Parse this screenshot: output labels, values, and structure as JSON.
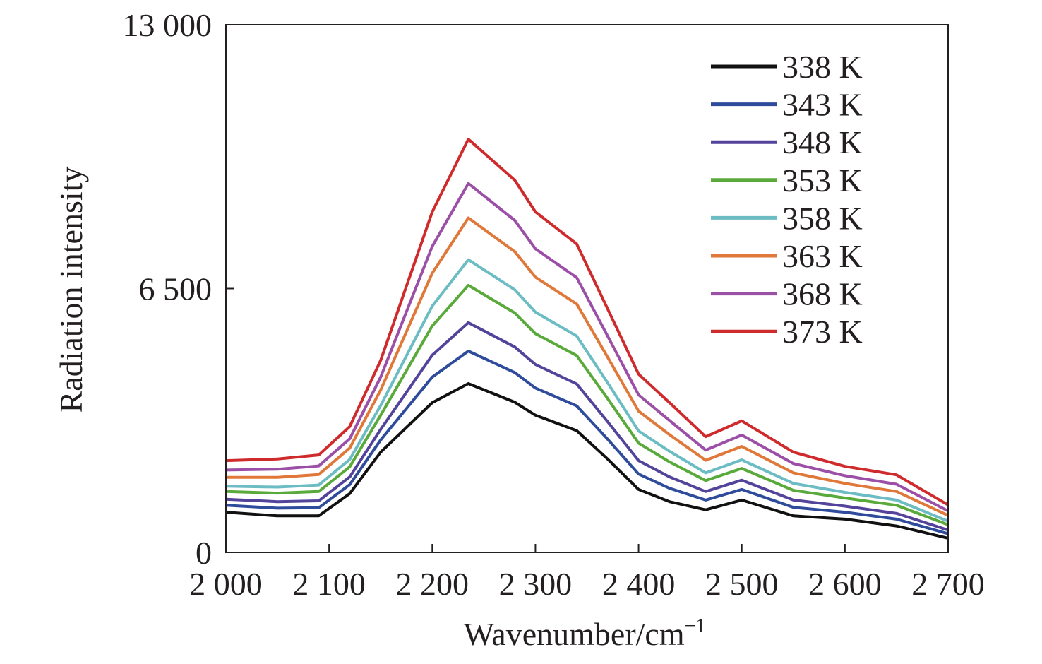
{
  "chart_data": {
    "type": "line",
    "title": "",
    "xlabel": "Wavenumber/cm",
    "xlabel_superscript": "−1",
    "ylabel": "Radiation intensity",
    "xlim": [
      2000,
      2700
    ],
    "ylim": [
      0,
      13000
    ],
    "xticks": [
      2000,
      2100,
      2200,
      2300,
      2400,
      2500,
      2600,
      2700
    ],
    "xtick_labels": [
      "2 000",
      "2 100",
      "2 200",
      "2 300",
      "2 400",
      "2 500",
      "2 600",
      "2 700"
    ],
    "yticks": [
      0,
      6500,
      13000
    ],
    "ytick_labels": [
      "0",
      "6 500",
      "13 000"
    ],
    "grid": false,
    "legend_position": "top-right",
    "x": [
      2000,
      2050,
      2090,
      2120,
      2150,
      2200,
      2235,
      2280,
      2300,
      2340,
      2370,
      2400,
      2430,
      2465,
      2500,
      2550,
      2600,
      2650,
      2700
    ],
    "series": [
      {
        "name": "338 K",
        "color": "#111111",
        "values": [
          990,
          900,
          900,
          1450,
          2470,
          3690,
          4160,
          3700,
          3380,
          3000,
          2300,
          1550,
          1250,
          1050,
          1290,
          900,
          820,
          650,
          350
        ]
      },
      {
        "name": "343 K",
        "color": "#2f4c9c",
        "values": [
          1160,
          1090,
          1100,
          1670,
          2770,
          4320,
          4960,
          4430,
          4050,
          3610,
          2790,
          1930,
          1580,
          1290,
          1550,
          1110,
          990,
          820,
          460
        ]
      },
      {
        "name": "348 K",
        "color": "#53439b",
        "values": [
          1310,
          1250,
          1270,
          1860,
          3030,
          4860,
          5660,
          5060,
          4630,
          4150,
          3220,
          2260,
          1860,
          1500,
          1780,
          1290,
          1140,
          960,
          550
        ]
      },
      {
        "name": "353 K",
        "color": "#5aaa3b",
        "values": [
          1500,
          1460,
          1500,
          2110,
          3380,
          5580,
          6580,
          5900,
          5390,
          4850,
          3790,
          2690,
          2230,
          1770,
          2070,
          1530,
          1340,
          1160,
          680
        ]
      },
      {
        "name": "358 K",
        "color": "#6cbcc3",
        "values": [
          1630,
          1610,
          1660,
          2290,
          3620,
          6070,
          7210,
          6470,
          5920,
          5330,
          4180,
          2990,
          2490,
          1960,
          2280,
          1700,
          1480,
          1290,
          770
        ]
      },
      {
        "name": "363 K",
        "color": "#e0783a",
        "values": [
          1850,
          1850,
          1920,
          2570,
          4000,
          6880,
          8240,
          7410,
          6780,
          6120,
          4810,
          3480,
          2900,
          2270,
          2610,
          1960,
          1700,
          1500,
          910
        ]
      },
      {
        "name": "368 K",
        "color": "#9b4fa6",
        "values": [
          2030,
          2050,
          2130,
          2800,
          4320,
          7540,
          9090,
          8180,
          7480,
          6770,
          5330,
          3880,
          3250,
          2520,
          2890,
          2190,
          1890,
          1680,
          1020
        ]
      },
      {
        "name": "373 K",
        "color": "#cf2a2c",
        "values": [
          2260,
          2300,
          2400,
          3100,
          4730,
          8390,
          10180,
          9170,
          8390,
          7600,
          6000,
          4390,
          3690,
          2850,
          3240,
          2470,
          2120,
          1910,
          1170
        ]
      }
    ]
  }
}
